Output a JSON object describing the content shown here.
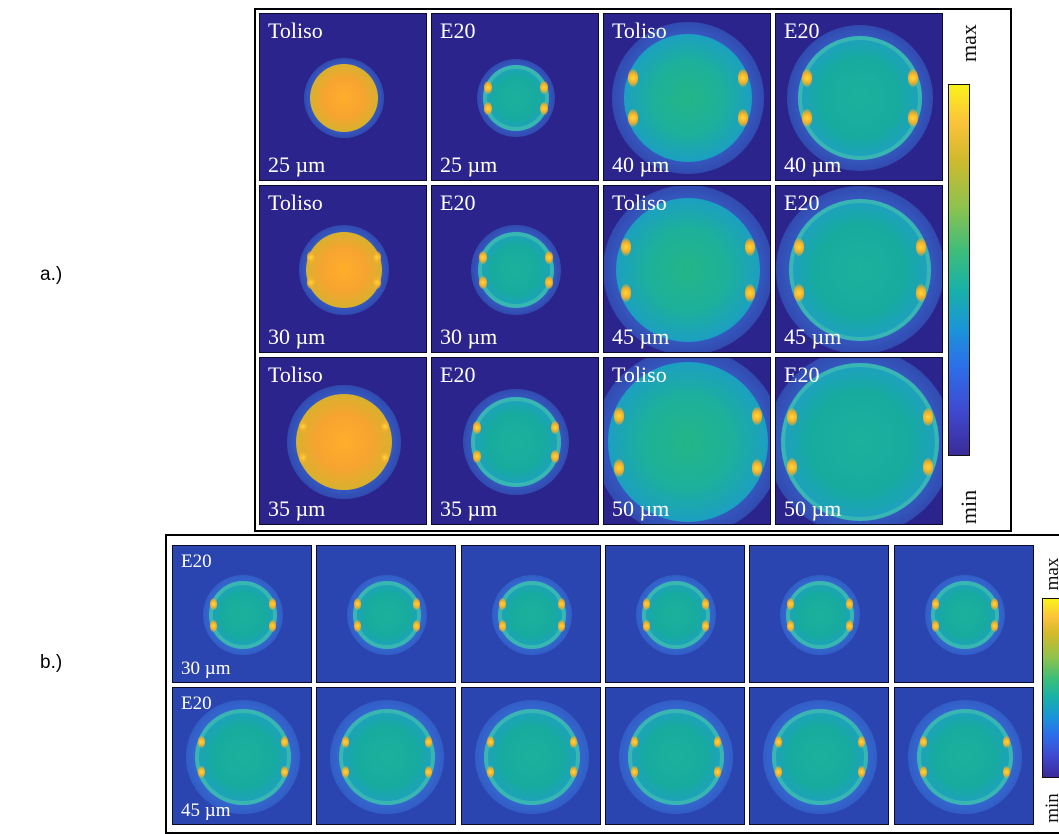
{
  "panels": {
    "a": {
      "label": "a.)",
      "tiles": [
        {
          "material": "Toliso",
          "size": "25 µm"
        },
        {
          "material": "E20",
          "size": "25 µm"
        },
        {
          "material": "Toliso",
          "size": "40 µm"
        },
        {
          "material": "E20",
          "size": "40 µm"
        },
        {
          "material": "Toliso",
          "size": "30 µm"
        },
        {
          "material": "E20",
          "size": "30 µm"
        },
        {
          "material": "Toliso",
          "size": "45 µm"
        },
        {
          "material": "E20",
          "size": "45 µm"
        },
        {
          "material": "Toliso",
          "size": "35 µm"
        },
        {
          "material": "E20",
          "size": "35 µm"
        },
        {
          "material": "Toliso",
          "size": "50 µm"
        },
        {
          "material": "E20",
          "size": "50 µm"
        }
      ],
      "colorbar": {
        "max": "max",
        "min": "min"
      }
    },
    "b": {
      "label": "b.)",
      "rows": [
        {
          "material": "E20",
          "size": "30 µm"
        },
        {
          "material": "E20",
          "size": "45 µm"
        }
      ],
      "colorbar": {
        "max": "max",
        "min": "min"
      }
    }
  },
  "colors": {
    "background": "#2a248c",
    "colormap": [
      "#2a248c",
      "#2c6fea",
      "#18b2a6",
      "#8ec24e",
      "#f3b02a",
      "#f9f21b"
    ]
  }
}
